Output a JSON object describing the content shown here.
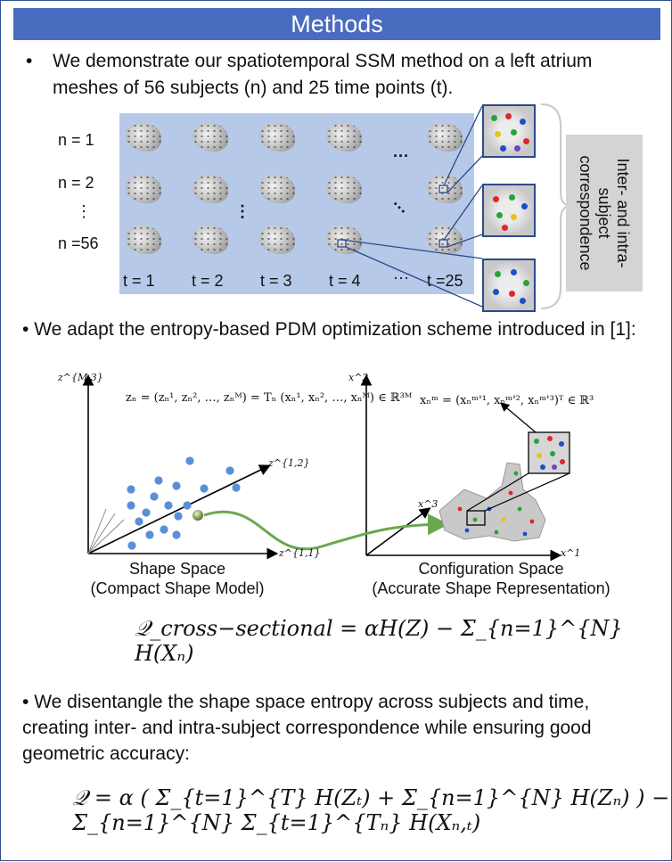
{
  "title": "Methods",
  "bullet_marker": "•",
  "bullet_marker_small": "• ",
  "bullets": [
    "We demonstrate our spatiotemporal SSM method on a left atrium meshes of 56 subjects (n) and 25 time points (t).",
    "We adapt the entropy-based PDM optimization scheme introduced in [1]:",
    "We disentangle the shape space entropy across subjects and time, creating inter- and intra-subject correspondence while ensuring good geometric accuracy:"
  ],
  "figure1": {
    "rows": [
      "n = 1",
      "n = 2",
      "n =56"
    ],
    "cols": [
      "t = 1",
      "t = 2",
      "t = 3",
      "t = 4",
      "t =25"
    ],
    "hdots": "···",
    "vdots": "⋮",
    "ddots": "···",
    "correspondence": [
      "Inter- and intra-subject",
      "correspondence"
    ]
  },
  "figure2": {
    "axis_labels": {
      "z_M3": "z^{M,3}",
      "z_12": "z^{1,2}",
      "z_11": "z^{1,1}",
      "x_2": "x^2",
      "x_3": "x^3",
      "x_1": "x^1"
    },
    "formula_z": "zₙ = (zₙ¹, zₙ², …, zₙᴹ) = Tₙ (xₙ¹, xₙ², …, xₙᴹ) ∈ ℝ³ᴹ",
    "formula_x": "xₙᵐ = (xₙᵐ'¹, xₙᵐ'², xₙᵐ'³)ᵀ ∈ ℝ³",
    "captions": [
      {
        "title": "Shape Space",
        "subtitle": "(Compact Shape Model)"
      },
      {
        "title": "Configuration Space",
        "subtitle": "(Accurate Shape Representation)"
      }
    ]
  },
  "equations": {
    "cross_sectional": "𝒬_cross−sectional = αH(Z) − Σ_{n=1}^{N} H(Xₙ)",
    "spatiotemporal": "𝒬 = α ( Σ_{t=1}^{T} H(Zₜ) + Σ_{n=1}^{N} H(Zₙ) ) − Σ_{n=1}^{N} Σ_{t=1}^{Tₙ} H(Xₙ,ₜ)"
  }
}
